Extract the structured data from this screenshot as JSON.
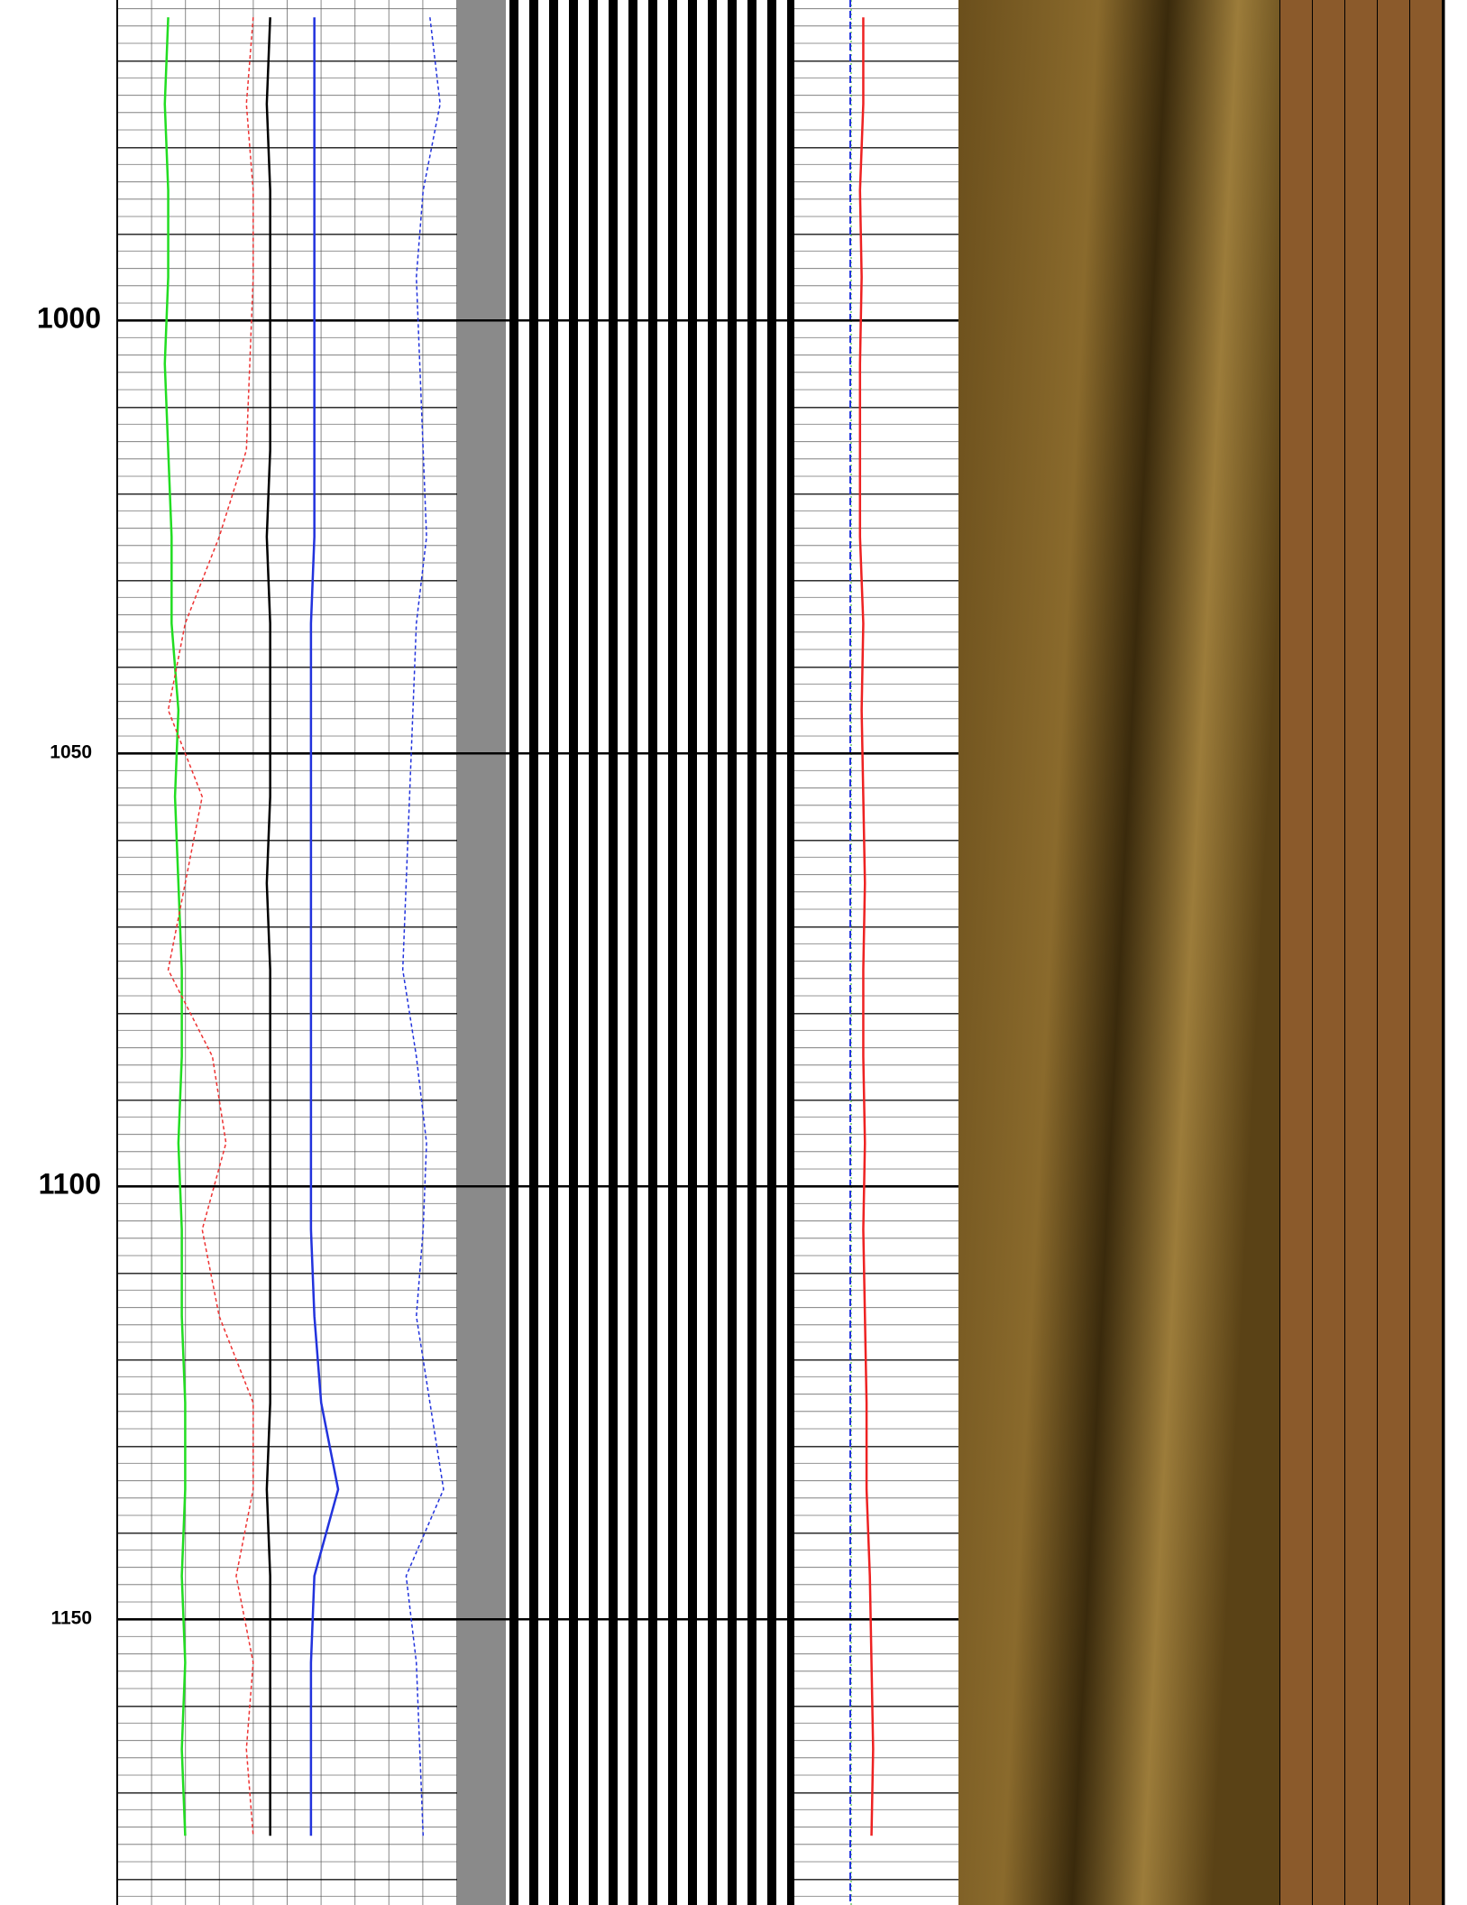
{
  "chart_data": {
    "type": "well-log",
    "ylim": [
      963,
      1183
    ],
    "yticks": [
      1000,
      1050,
      1100,
      1150
    ],
    "x": [
      965,
      975,
      985,
      995,
      1005,
      1015,
      1025,
      1035,
      1045,
      1055,
      1065,
      1075,
      1085,
      1095,
      1105,
      1115,
      1125,
      1135,
      1145,
      1155,
      1165,
      1175
    ],
    "xlim": [
      0,
      100
    ],
    "series": [
      {
        "color": "#22dd22",
        "dash": false,
        "values": [
          15,
          14,
          15,
          15,
          14,
          15,
          16,
          16,
          18,
          17,
          18,
          19,
          19,
          18,
          19,
          19,
          20,
          20,
          19,
          20,
          19,
          20
        ]
      },
      {
        "color": "#ee3333",
        "dash": true,
        "values": [
          40,
          38,
          40,
          40,
          39,
          38,
          30,
          20,
          15,
          25,
          20,
          15,
          28,
          32,
          25,
          30,
          40,
          40,
          35,
          40,
          38,
          40
        ]
      },
      {
        "color": "#000000",
        "dash": false,
        "values": [
          45,
          44,
          45,
          45,
          45,
          45,
          44,
          45,
          45,
          45,
          44,
          45,
          45,
          45,
          45,
          45,
          45,
          44,
          45,
          45,
          45,
          45
        ]
      },
      {
        "color": "#2233dd",
        "dash": false,
        "values": [
          58,
          58,
          58,
          58,
          58,
          58,
          58,
          57,
          57,
          57,
          57,
          57,
          57,
          57,
          57,
          58,
          60,
          65,
          58,
          57,
          57,
          57
        ]
      },
      {
        "color": "#2233dd",
        "dash": true,
        "values": [
          92,
          95,
          90,
          88,
          89,
          90,
          91,
          88,
          87,
          86,
          85,
          84,
          88,
          91,
          90,
          88,
          92,
          96,
          85,
          88,
          89,
          90
        ]
      },
      {
        "color": "#ee2222",
        "dash": false,
        "values": [
          42,
          42,
          40,
          41,
          40,
          40,
          40,
          42,
          41,
          42,
          43,
          42,
          42,
          43,
          42,
          43,
          44,
          44,
          46,
          47,
          48,
          47
        ]
      }
    ]
  }
}
